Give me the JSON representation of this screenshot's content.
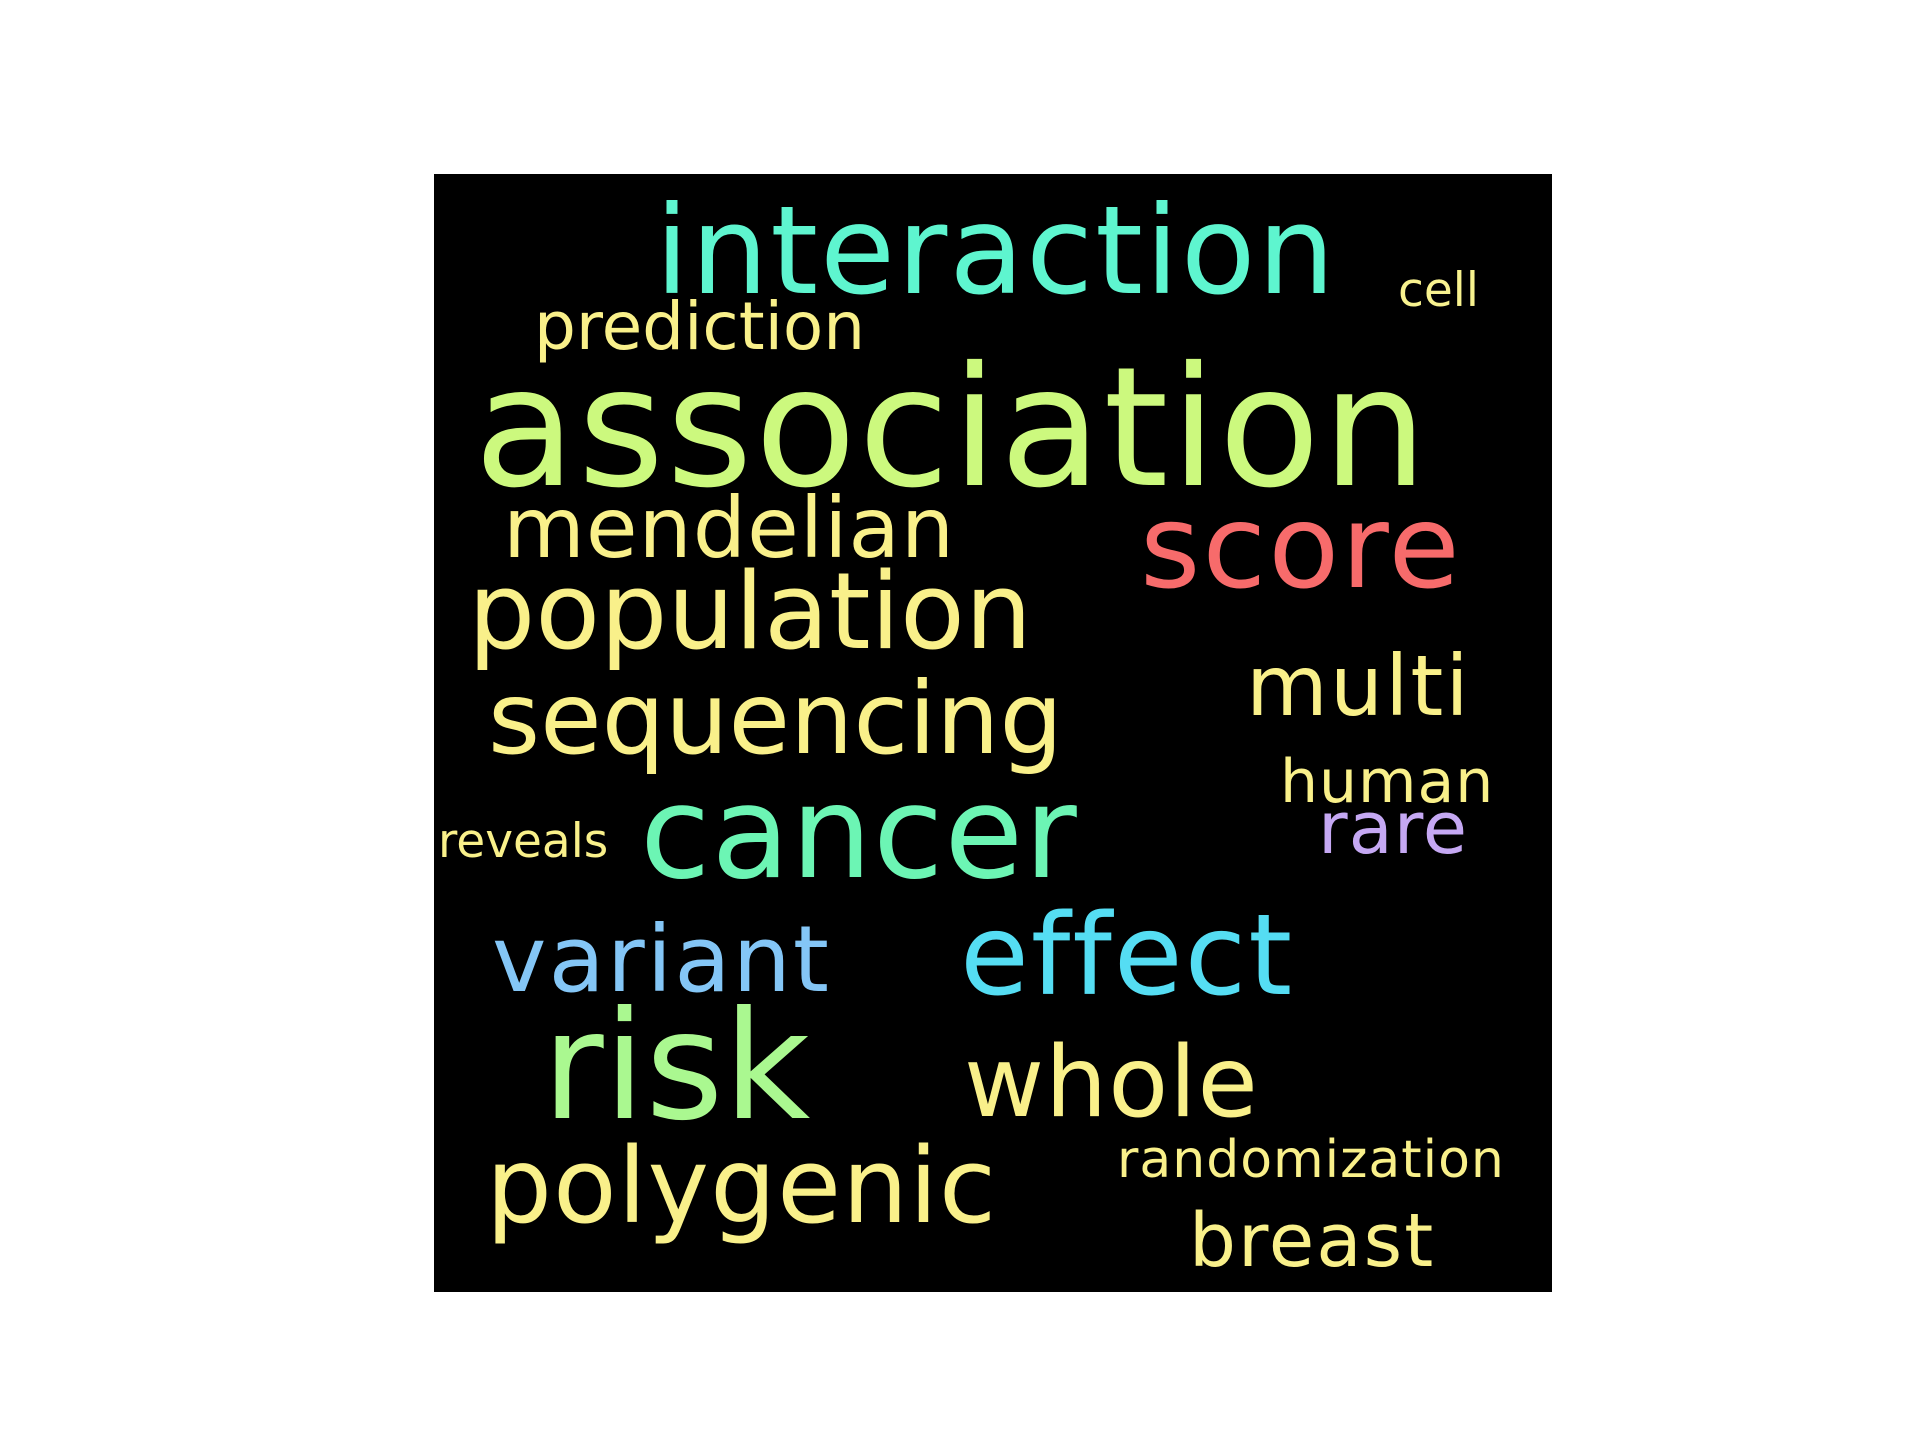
{
  "words": {
    "interaction": {
      "text": "interaction",
      "color": "#5ef5cf"
    },
    "cell": {
      "text": "cell",
      "color": "#f8f28f"
    },
    "prediction": {
      "text": "prediction",
      "color": "#f9f08a"
    },
    "association": {
      "text": "association",
      "color": "#ccf97e"
    },
    "mendelian": {
      "text": "mendelian",
      "color": "#f9f08a"
    },
    "score": {
      "text": "score",
      "color": "#f76b6b"
    },
    "population": {
      "text": "population",
      "color": "#f9f08a"
    },
    "multi": {
      "text": "multi",
      "color": "#f9f08a"
    },
    "sequencing": {
      "text": "sequencing",
      "color": "#f9f08a"
    },
    "human": {
      "text": "human",
      "color": "#f9f08a"
    },
    "reveals": {
      "text": "reveals",
      "color": "#f9f08a"
    },
    "cancer": {
      "text": "cancer",
      "color": "#6cf5b4"
    },
    "rare": {
      "text": "rare",
      "color": "#c5a8f3"
    },
    "variant": {
      "text": "variant",
      "color": "#84c6f6"
    },
    "effect": {
      "text": "effect",
      "color": "#55ddf3"
    },
    "risk": {
      "text": "risk",
      "color": "#aaf890"
    },
    "whole": {
      "text": "whole",
      "color": "#f9f08a"
    },
    "randomization": {
      "text": "randomization",
      "color": "#f9f08a"
    },
    "polygenic": {
      "text": "polygenic",
      "color": "#f9f08a"
    },
    "breast": {
      "text": "breast",
      "color": "#f9f08a"
    }
  },
  "panel": {
    "background": "#000000"
  }
}
